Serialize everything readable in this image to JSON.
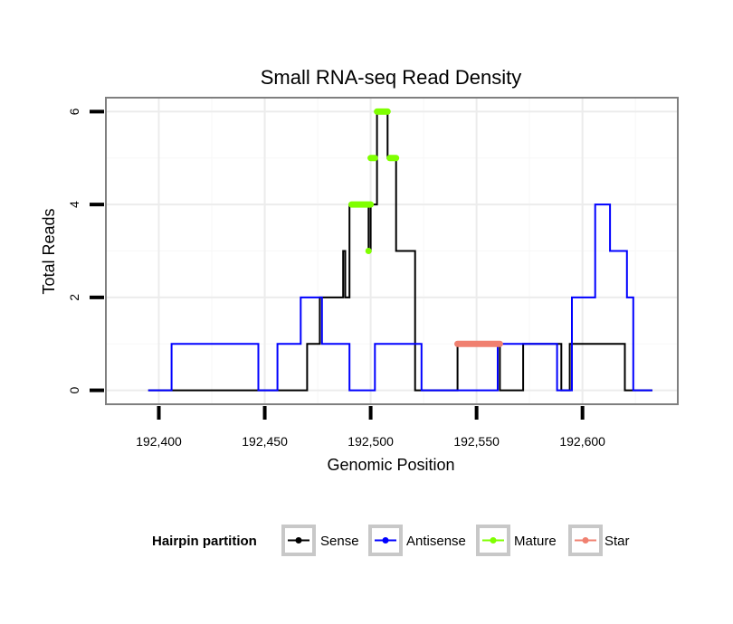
{
  "chart_data": {
    "type": "line",
    "title": "Small RNA-seq Read Density",
    "xlabel": "Genomic Position",
    "ylabel": "Total Reads",
    "xlim": [
      192375,
      192645
    ],
    "ylim": [
      -0.3,
      6.3
    ],
    "x_ticks": [
      192400,
      192450,
      192500,
      192550,
      192600
    ],
    "x_tick_labels": [
      "192,400",
      "192,450",
      "192,500",
      "192,550",
      "192,600"
    ],
    "y_ticks": [
      0,
      2,
      4,
      6
    ],
    "y_tick_labels": [
      "0",
      "2",
      "4",
      "6"
    ],
    "grid": true,
    "legend": {
      "title": "Hairpin partition",
      "position": "bottom",
      "entries": [
        "Sense",
        "Antisense",
        "Mature",
        "Star"
      ]
    },
    "series": [
      {
        "name": "Sense",
        "color": "#000000",
        "style": "step",
        "points": [
          [
            192395,
            0
          ],
          [
            192470,
            0
          ],
          [
            192470,
            1
          ],
          [
            192476,
            1
          ],
          [
            192476,
            2
          ],
          [
            192487,
            2
          ],
          [
            192487,
            3
          ],
          [
            192488,
            3
          ],
          [
            192488,
            2
          ],
          [
            192490,
            2
          ],
          [
            192490,
            4
          ],
          [
            192499,
            4
          ],
          [
            192499,
            3
          ],
          [
            192500,
            3
          ],
          [
            192500,
            4
          ],
          [
            192503,
            4
          ],
          [
            192503,
            6
          ],
          [
            192508,
            6
          ],
          [
            192508,
            5
          ],
          [
            192512,
            5
          ],
          [
            192512,
            3
          ],
          [
            192521,
            3
          ],
          [
            192521,
            0
          ],
          [
            192541,
            0
          ],
          [
            192541,
            1
          ],
          [
            192561,
            1
          ],
          [
            192561,
            0
          ],
          [
            192572,
            0
          ],
          [
            192572,
            1
          ],
          [
            192590,
            1
          ],
          [
            192590,
            0
          ],
          [
            192594,
            0
          ],
          [
            192594,
            1
          ],
          [
            192620,
            1
          ],
          [
            192620,
            0
          ],
          [
            192633,
            0
          ]
        ]
      },
      {
        "name": "Antisense",
        "color": "#0000ff",
        "style": "step",
        "points": [
          [
            192395,
            0
          ],
          [
            192406,
            0
          ],
          [
            192406,
            1
          ],
          [
            192447,
            1
          ],
          [
            192447,
            0
          ],
          [
            192456,
            0
          ],
          [
            192456,
            1
          ],
          [
            192467,
            1
          ],
          [
            192467,
            2
          ],
          [
            192477,
            2
          ],
          [
            192477,
            1
          ],
          [
            192490,
            1
          ],
          [
            192490,
            0
          ],
          [
            192502,
            0
          ],
          [
            192502,
            1
          ],
          [
            192524,
            1
          ],
          [
            192524,
            0
          ],
          [
            192560,
            0
          ],
          [
            192560,
            1
          ],
          [
            192588,
            1
          ],
          [
            192588,
            0
          ],
          [
            192595,
            0
          ],
          [
            192595,
            2
          ],
          [
            192606,
            2
          ],
          [
            192606,
            4
          ],
          [
            192613,
            4
          ],
          [
            192613,
            3
          ],
          [
            192621,
            3
          ],
          [
            192621,
            2
          ],
          [
            192624,
            2
          ],
          [
            192624,
            0
          ],
          [
            192633,
            0
          ]
        ]
      },
      {
        "name": "Mature",
        "color": "#7fff00",
        "style": "segments",
        "segments": [
          [
            192491,
            192500,
            4
          ],
          [
            192503,
            192508,
            6
          ],
          [
            192500,
            192502,
            5
          ],
          [
            192509,
            192512,
            5
          ]
        ],
        "points": [
          [
            192499,
            3
          ]
        ]
      },
      {
        "name": "Star",
        "color": "#f08070",
        "style": "segments",
        "segments": [
          [
            192541,
            192561,
            1
          ]
        ],
        "points": []
      }
    ]
  }
}
